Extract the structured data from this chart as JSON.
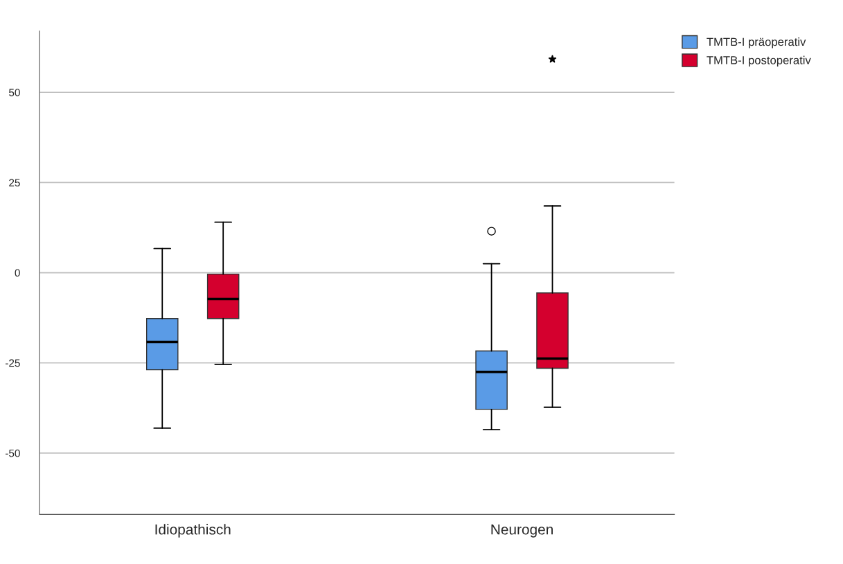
{
  "chart_data": {
    "type": "box",
    "categories": [
      "Idiopathisch",
      "Neurogen"
    ],
    "series": [
      {
        "name": "TMTB-I präoperativ",
        "color": "#5a9be6",
        "marker": "circle",
        "boxes": [
          {
            "low": -43.1,
            "q1": -26.9,
            "median": -19.2,
            "q3": -12.7,
            "high": 6.7
          },
          {
            "low": -43.5,
            "q1": -37.9,
            "median": -27.5,
            "q3": -21.7,
            "high": 2.5,
            "outliers": [
              11.5
            ]
          }
        ]
      },
      {
        "name": "TMTB-I postoperativ",
        "color": "#d4002e",
        "marker": "star",
        "boxes": [
          {
            "low": -25.4,
            "q1": -12.7,
            "median": -7.3,
            "q3": -0.4,
            "high": 14.0
          },
          {
            "low": -37.3,
            "q1": -26.5,
            "median": -23.8,
            "q3": -5.6,
            "high": 18.5,
            "outliers": [
              59.2
            ]
          }
        ]
      }
    ],
    "ylim": [
      -67,
      67
    ],
    "yticks": [
      -50,
      -25,
      0,
      25,
      50
    ],
    "grid": "y",
    "legend": "top right"
  }
}
